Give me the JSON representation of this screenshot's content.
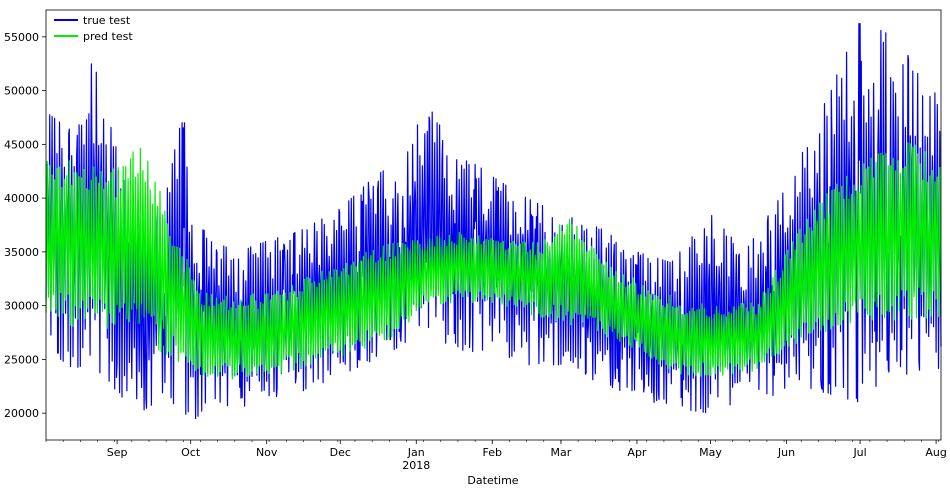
{
  "chart_data": {
    "type": "line",
    "title": "",
    "xlabel": "Datetime",
    "ylabel": "",
    "x_range": [
      "2017-08-03",
      "2018-08-03"
    ],
    "ylim": [
      17500,
      57500
    ],
    "y_ticks": [
      20000,
      25000,
      30000,
      35000,
      40000,
      45000,
      50000,
      55000
    ],
    "x_ticks": [
      {
        "date": "2017-09-01",
        "label": "Sep"
      },
      {
        "date": "2017-10-01",
        "label": "Oct"
      },
      {
        "date": "2017-11-01",
        "label": "Nov"
      },
      {
        "date": "2017-12-01",
        "label": "Dec"
      },
      {
        "date": "2018-01-01",
        "label": "Jan",
        "sublabel": "2018"
      },
      {
        "date": "2018-02-01",
        "label": "Feb"
      },
      {
        "date": "2018-03-01",
        "label": "Mar"
      },
      {
        "date": "2018-04-01",
        "label": "Apr"
      },
      {
        "date": "2018-05-01",
        "label": "May"
      },
      {
        "date": "2018-06-01",
        "label": "Jun"
      },
      {
        "date": "2018-07-01",
        "label": "Jul"
      },
      {
        "date": "2018-08-01",
        "label": "Aug"
      }
    ],
    "grid": false,
    "legend_position": "top-left",
    "series": [
      {
        "name": "true test",
        "color": "#0000ee",
        "daily_ranges": [
          {
            "date": "2017-08-03",
            "min": 26000,
            "max": 48000
          },
          {
            "date": "2017-08-15",
            "min": 24000,
            "max": 46000
          },
          {
            "date": "2017-08-22",
            "min": 24500,
            "max": 53000
          },
          {
            "date": "2017-09-05",
            "min": 21000,
            "max": 41000
          },
          {
            "date": "2017-09-10",
            "min": 20000,
            "max": 37000
          },
          {
            "date": "2017-09-20",
            "min": 21500,
            "max": 40000
          },
          {
            "date": "2017-09-28",
            "min": 20000,
            "max": 48000
          },
          {
            "date": "2017-10-03",
            "min": 19500,
            "max": 38000
          },
          {
            "date": "2017-10-10",
            "min": 21000,
            "max": 36000
          },
          {
            "date": "2017-10-20",
            "min": 20500,
            "max": 35000
          },
          {
            "date": "2017-11-01",
            "min": 21000,
            "max": 36000
          },
          {
            "date": "2017-11-15",
            "min": 22000,
            "max": 37000
          },
          {
            "date": "2017-12-01",
            "min": 23500,
            "max": 39000
          },
          {
            "date": "2017-12-15",
            "min": 25000,
            "max": 42000
          },
          {
            "date": "2017-12-28",
            "min": 26500,
            "max": 44000
          },
          {
            "date": "2018-01-05",
            "min": 27000,
            "max": 49000
          },
          {
            "date": "2018-01-15",
            "min": 26000,
            "max": 45000
          },
          {
            "date": "2018-02-01",
            "min": 25500,
            "max": 42000
          },
          {
            "date": "2018-02-15",
            "min": 24500,
            "max": 40000
          },
          {
            "date": "2018-03-01",
            "min": 24500,
            "max": 38500
          },
          {
            "date": "2018-03-15",
            "min": 23000,
            "max": 37500
          },
          {
            "date": "2018-04-01",
            "min": 21500,
            "max": 35000
          },
          {
            "date": "2018-04-15",
            "min": 20500,
            "max": 34000
          },
          {
            "date": "2018-05-01",
            "min": 20000,
            "max": 38500
          },
          {
            "date": "2018-05-15",
            "min": 20500,
            "max": 35000
          },
          {
            "date": "2018-06-01",
            "min": 21500,
            "max": 41000
          },
          {
            "date": "2018-06-15",
            "min": 22000,
            "max": 48000
          },
          {
            "date": "2018-07-01",
            "min": 21000,
            "max": 56500
          },
          {
            "date": "2018-07-15",
            "min": 23500,
            "max": 55000
          },
          {
            "date": "2018-08-03",
            "min": 24000,
            "max": 49000
          }
        ]
      },
      {
        "name": "pred test",
        "color": "#00ee00",
        "daily_ranges": [
          {
            "date": "2017-08-03",
            "min": 27500,
            "max": 44000
          },
          {
            "date": "2017-08-15",
            "min": 27000,
            "max": 44000
          },
          {
            "date": "2017-09-01",
            "min": 26500,
            "max": 43000
          },
          {
            "date": "2017-09-10",
            "min": 26000,
            "max": 46000
          },
          {
            "date": "2017-09-20",
            "min": 24500,
            "max": 40000
          },
          {
            "date": "2017-10-05",
            "min": 23000,
            "max": 31500
          },
          {
            "date": "2017-10-20",
            "min": 22500,
            "max": 31000
          },
          {
            "date": "2017-11-05",
            "min": 23000,
            "max": 31500
          },
          {
            "date": "2017-11-20",
            "min": 24000,
            "max": 33000
          },
          {
            "date": "2017-12-05",
            "min": 25000,
            "max": 34500
          },
          {
            "date": "2017-12-20",
            "min": 26000,
            "max": 36000
          },
          {
            "date": "2018-01-05",
            "min": 29500,
            "max": 36500
          },
          {
            "date": "2018-01-20",
            "min": 30000,
            "max": 37000
          },
          {
            "date": "2018-02-05",
            "min": 29500,
            "max": 36500
          },
          {
            "date": "2018-02-20",
            "min": 28500,
            "max": 36000
          },
          {
            "date": "2018-03-05",
            "min": 27500,
            "max": 38500
          },
          {
            "date": "2018-03-20",
            "min": 26500,
            "max": 34000
          },
          {
            "date": "2018-04-05",
            "min": 24500,
            "max": 32000
          },
          {
            "date": "2018-04-20",
            "min": 23000,
            "max": 30500
          },
          {
            "date": "2018-05-05",
            "min": 23000,
            "max": 30000
          },
          {
            "date": "2018-05-20",
            "min": 23500,
            "max": 30500
          },
          {
            "date": "2018-06-05",
            "min": 25500,
            "max": 37000
          },
          {
            "date": "2018-06-20",
            "min": 26500,
            "max": 41500
          },
          {
            "date": "2018-07-05",
            "min": 27000,
            "max": 44000
          },
          {
            "date": "2018-07-20",
            "min": 27500,
            "max": 45500
          },
          {
            "date": "2018-08-03",
            "min": 28000,
            "max": 44000
          }
        ]
      }
    ]
  }
}
